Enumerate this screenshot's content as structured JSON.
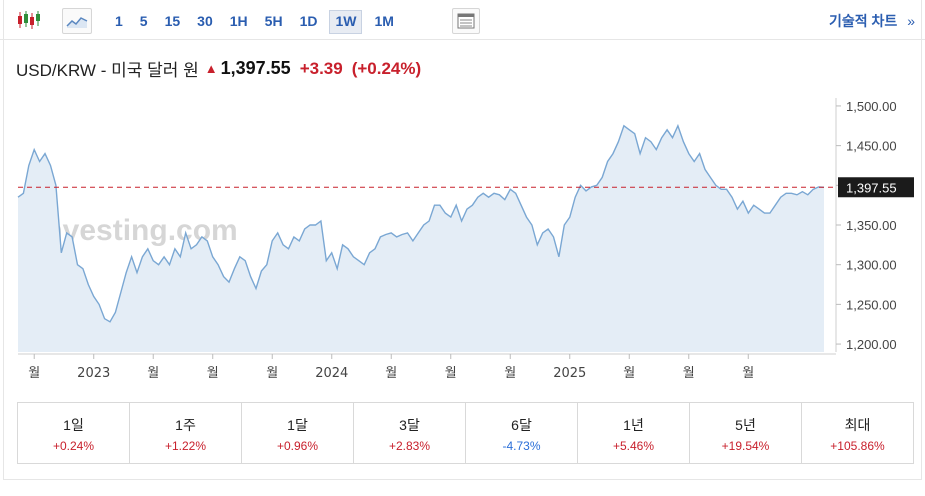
{
  "toolbar": {
    "intervals": [
      "1",
      "5",
      "15",
      "30",
      "1H",
      "5H",
      "1D",
      "1W",
      "1M"
    ],
    "active_interval": "1W",
    "tech_chart_label": "기술적 차트",
    "tech_chart_chevron": "»",
    "icons": [
      "candlestick-icon",
      "line-chart-icon",
      "table-icon"
    ]
  },
  "header": {
    "pair": "USD/KRW - 미국 달러 원",
    "direction": "▲",
    "price": "1,397.55",
    "change": "+3.39",
    "change_pct": "(+0.24%)"
  },
  "chart_data": {
    "type": "area",
    "watermark": "Investing.com",
    "current_label": "1,397.55",
    "current_value": 1397.55,
    "ylim": [
      1190,
      1510
    ],
    "yticks": [
      1200,
      1250,
      1300,
      1350,
      1400,
      1450,
      1500
    ],
    "ytick_labels": [
      "1,200.00",
      "1,250.00",
      "1,300.00",
      "1,350.00",
      "1,400.00",
      "1,450.00",
      "1,500.00"
    ],
    "xtick_labels": [
      "월",
      "2023",
      "월",
      "월",
      "월",
      "2024",
      "월",
      "월",
      "월",
      "2025",
      "월",
      "월",
      "월"
    ],
    "xtick_index": [
      3,
      14,
      25,
      36,
      47,
      58,
      69,
      80,
      91,
      102,
      113,
      124,
      135
    ],
    "grid": false,
    "colors": {
      "line": "#7aa7d3",
      "fill": "#e4edf6",
      "current": "#c8202c",
      "label_bg": "#1b1b1b"
    },
    "values": [
      1385,
      1390,
      1425,
      1445,
      1430,
      1440,
      1425,
      1400,
      1315,
      1340,
      1335,
      1300,
      1295,
      1275,
      1260,
      1250,
      1232,
      1228,
      1240,
      1265,
      1290,
      1310,
      1290,
      1310,
      1320,
      1305,
      1300,
      1310,
      1300,
      1320,
      1310,
      1340,
      1320,
      1325,
      1335,
      1330,
      1310,
      1300,
      1285,
      1278,
      1295,
      1310,
      1305,
      1285,
      1270,
      1292,
      1300,
      1330,
      1340,
      1325,
      1320,
      1335,
      1330,
      1345,
      1350,
      1350,
      1355,
      1305,
      1315,
      1295,
      1325,
      1320,
      1310,
      1305,
      1300,
      1315,
      1320,
      1335,
      1338,
      1340,
      1335,
      1338,
      1340,
      1330,
      1340,
      1350,
      1355,
      1375,
      1375,
      1365,
      1360,
      1375,
      1355,
      1370,
      1375,
      1385,
      1390,
      1385,
      1390,
      1388,
      1382,
      1395,
      1390,
      1375,
      1360,
      1350,
      1325,
      1340,
      1345,
      1335,
      1310,
      1350,
      1360,
      1385,
      1400,
      1393,
      1398,
      1400,
      1410,
      1430,
      1440,
      1455,
      1475,
      1470,
      1465,
      1440,
      1460,
      1455,
      1445,
      1460,
      1470,
      1460,
      1475,
      1455,
      1440,
      1430,
      1440,
      1420,
      1410,
      1400,
      1395,
      1395,
      1385,
      1370,
      1380,
      1365,
      1375,
      1370,
      1365,
      1365,
      1375,
      1385,
      1390,
      1390,
      1388,
      1392,
      1388,
      1395,
      1398,
      1397.55
    ]
  },
  "periods": [
    {
      "label": "1일",
      "value": "+0.24%",
      "sign": "pos"
    },
    {
      "label": "1주",
      "value": "+1.22%",
      "sign": "pos"
    },
    {
      "label": "1달",
      "value": "+0.96%",
      "sign": "pos"
    },
    {
      "label": "3달",
      "value": "+2.83%",
      "sign": "pos"
    },
    {
      "label": "6달",
      "value": "-4.73%",
      "sign": "neg"
    },
    {
      "label": "1년",
      "value": "+5.46%",
      "sign": "pos"
    },
    {
      "label": "5년",
      "value": "+19.54%",
      "sign": "pos"
    },
    {
      "label": "최대",
      "value": "+105.86%",
      "sign": "pos"
    }
  ]
}
